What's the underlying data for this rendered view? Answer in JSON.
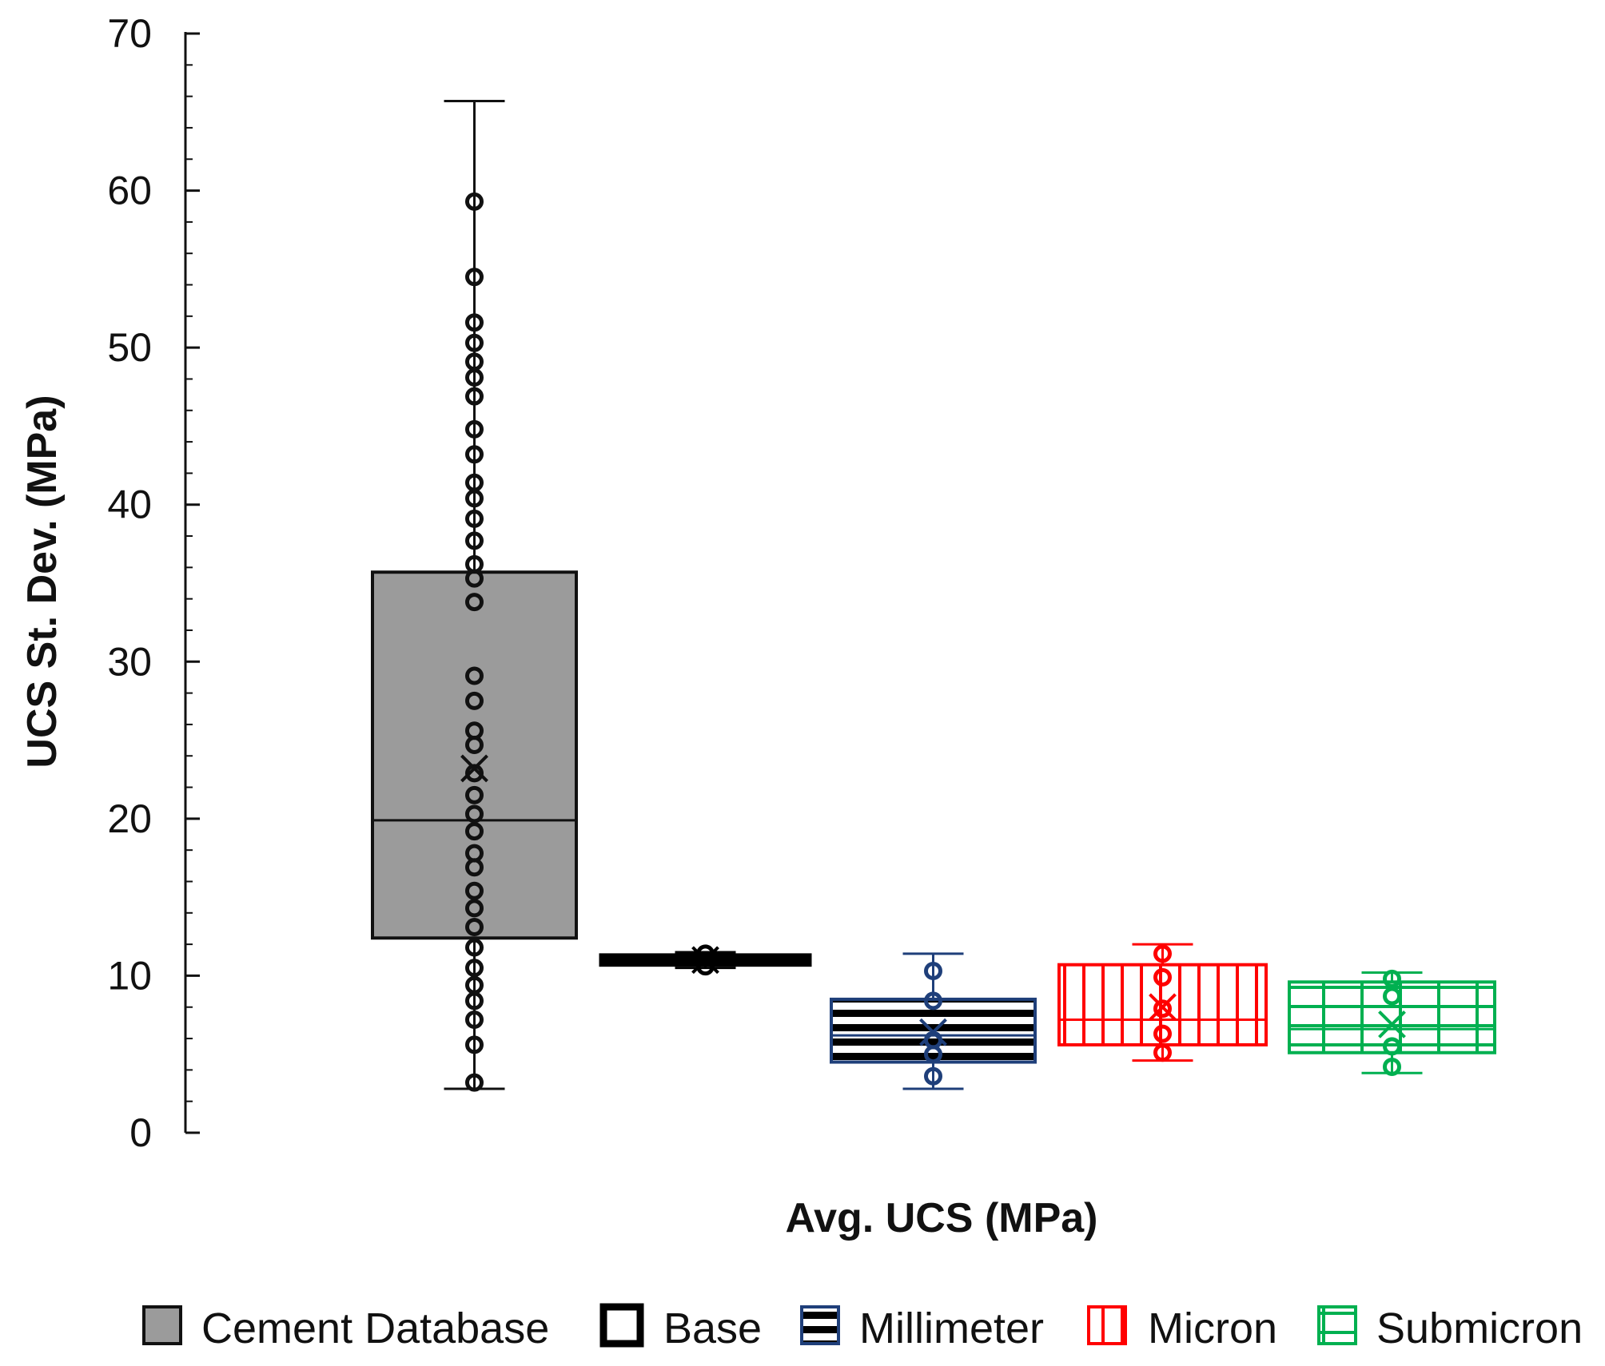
{
  "chart_data": {
    "type": "box",
    "title": "",
    "xlabel": "Avg. UCS (MPa)",
    "ylabel": "UCS St. Dev. (MPa)",
    "ylim": [
      0,
      70
    ],
    "yticks": [
      0,
      10,
      20,
      30,
      40,
      50,
      60,
      70
    ],
    "grid": false,
    "legend_position": "bottom",
    "series": [
      {
        "name": "Cement Database",
        "color": "#9b9b9b",
        "stroke": "#111111",
        "pattern": "solid-gray",
        "whisker_low": 2.8,
        "q1": 12.4,
        "median": 19.9,
        "q3": 35.7,
        "whisker_high": 65.7,
        "mean": 23.2,
        "points": [
          3.2,
          5.6,
          7.2,
          8.4,
          9.4,
          10.5,
          11.8,
          13.1,
          14.3,
          15.4,
          16.9,
          17.8,
          19.2,
          20.3,
          21.5,
          22.9,
          24.7,
          25.6,
          27.5,
          29.1,
          33.8,
          35.3,
          36.2,
          37.7,
          39.1,
          40.4,
          41.4,
          43.2,
          44.8,
          46.9,
          48.1,
          49.1,
          50.3,
          51.6,
          54.5,
          59.3
        ]
      },
      {
        "name": "Base",
        "color": "#000000",
        "stroke": "#000000",
        "pattern": "solid-black",
        "whisker_low": 10.5,
        "q1": 10.7,
        "median": 11.0,
        "q3": 11.3,
        "whisker_high": 11.5,
        "mean": 11.0,
        "points": [
          10.6,
          11.4
        ]
      },
      {
        "name": "Millimeter",
        "color": "#1f3f7a",
        "stroke": "#1f3f7a",
        "pattern": "horizontal-stripes",
        "whisker_low": 2.8,
        "q1": 4.5,
        "median": 6.2,
        "q3": 8.5,
        "whisker_high": 11.4,
        "mean": 6.4,
        "points": [
          3.6,
          5.0,
          5.9,
          8.4,
          10.3
        ]
      },
      {
        "name": "Micron",
        "color": "#ff0000",
        "stroke": "#ff0000",
        "pattern": "vertical-stripes",
        "whisker_low": 4.6,
        "q1": 5.6,
        "median": 7.2,
        "q3": 10.7,
        "whisker_high": 12.0,
        "mean": 8.0,
        "points": [
          5.1,
          6.3,
          7.9,
          9.9,
          11.4
        ]
      },
      {
        "name": "Submicron",
        "color": "#00b050",
        "stroke": "#00b050",
        "pattern": "grid",
        "whisker_low": 3.8,
        "q1": 5.1,
        "median": 6.6,
        "q3": 9.6,
        "whisker_high": 10.2,
        "mean": 6.9,
        "points": [
          4.2,
          5.5,
          8.7,
          9.8
        ]
      }
    ]
  }
}
